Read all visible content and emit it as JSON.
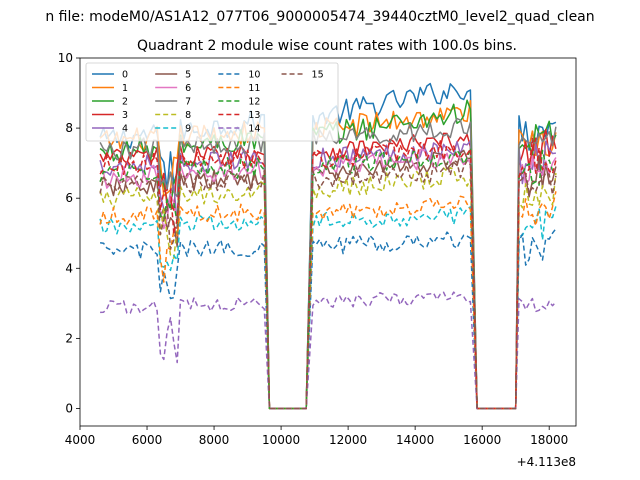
{
  "figure": {
    "suptitle": "n file: modeM0/AS1A12_077T06_9000005474_39440cztM0_level2_quad_clean"
  },
  "chart_data": {
    "type": "line",
    "title": "Quadrant 2 module wise count rates with 100.0s bins.",
    "xlabel": "",
    "ylabel": "",
    "x_offset_label": "+4.113e8",
    "xlim": [
      4000,
      18800
    ],
    "ylim": [
      -0.5,
      10
    ],
    "x_ticks": [
      4000,
      6000,
      8000,
      10000,
      12000,
      14000,
      16000,
      18000
    ],
    "x_tick_labels": [
      "4000",
      "6000",
      "8000",
      "10000",
      "12000",
      "14000",
      "16000",
      "18000"
    ],
    "y_ticks": [
      0,
      2,
      4,
      6,
      8,
      10
    ],
    "y_tick_labels": [
      "0",
      "2",
      "4",
      "6",
      "8",
      "10"
    ],
    "grid": false,
    "legend_position": "upper-left",
    "legend_columns": 4,
    "segments": [
      [
        4600,
        9450
      ],
      [
        9650,
        10750
      ],
      [
        10950,
        15650
      ],
      [
        15850,
        17000
      ],
      [
        17100,
        18200
      ]
    ],
    "series": [
      {
        "name": "0",
        "color": "#1f77b4",
        "dash": "solid",
        "level": 8.2,
        "trend": 0.9,
        "noise": 0.35
      },
      {
        "name": "1",
        "color": "#ff7f0e",
        "dash": "solid",
        "level": 7.9,
        "trend": 0.5,
        "noise": 0.35
      },
      {
        "name": "2",
        "color": "#2ca02c",
        "dash": "solid",
        "level": 7.7,
        "trend": 0.7,
        "noise": 0.35
      },
      {
        "name": "3",
        "color": "#d62728",
        "dash": "solid",
        "level": 7.3,
        "trend": 0.3,
        "noise": 0.3
      },
      {
        "name": "4",
        "color": "#9467bd",
        "dash": "solid",
        "level": 7.1,
        "trend": 0.3,
        "noise": 0.3
      },
      {
        "name": "5",
        "color": "#8c564b",
        "dash": "solid",
        "level": 6.6,
        "trend": 0.5,
        "noise": 0.3
      },
      {
        "name": "6",
        "color": "#e377c2",
        "dash": "solid",
        "level": 6.8,
        "trend": 0.4,
        "noise": 0.3
      },
      {
        "name": "7",
        "color": "#7f7f7f",
        "dash": "solid",
        "level": 7.6,
        "trend": 0.4,
        "noise": 0.3
      },
      {
        "name": "8",
        "color": "#bcbd22",
        "dash": "dashed",
        "level": 6.2,
        "trend": 0.4,
        "noise": 0.3
      },
      {
        "name": "9",
        "color": "#17becf",
        "dash": "dashed",
        "level": 5.3,
        "trend": 0.2,
        "noise": 0.25
      },
      {
        "name": "10",
        "color": "#1f77b4",
        "dash": "dashed",
        "level": 4.6,
        "trend": 0.2,
        "noise": 0.25
      },
      {
        "name": "11",
        "color": "#ff7f0e",
        "dash": "dashed",
        "level": 5.6,
        "trend": 0.2,
        "noise": 0.25
      },
      {
        "name": "12",
        "color": "#2ca02c",
        "dash": "dashed",
        "level": 6.9,
        "trend": 0.3,
        "noise": 0.3
      },
      {
        "name": "13",
        "color": "#d62728",
        "dash": "dashed",
        "level": 7.1,
        "trend": 0.3,
        "noise": 0.3
      },
      {
        "name": "14",
        "color": "#9467bd",
        "dash": "dashed",
        "level": 3.0,
        "trend": 0.2,
        "noise": 0.2
      },
      {
        "name": "15",
        "color": "#8c564b",
        "dash": "dashed",
        "level": 6.5,
        "trend": 0.3,
        "noise": 0.3
      }
    ]
  }
}
